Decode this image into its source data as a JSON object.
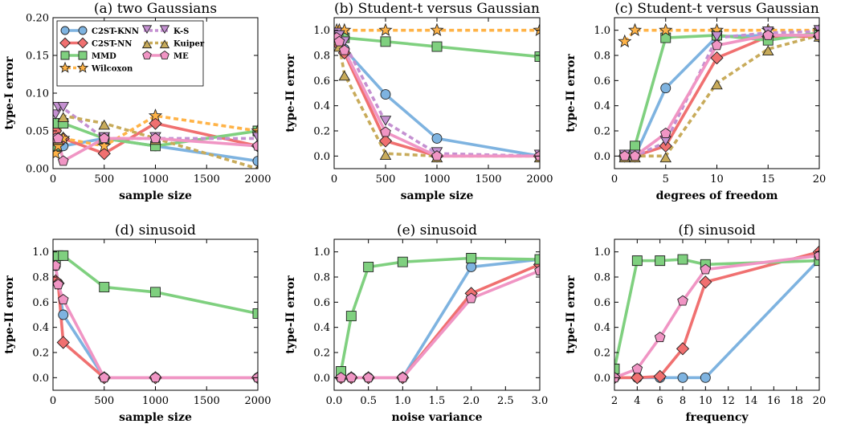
{
  "colors": {
    "c2st_knn": "#7eb3e0",
    "c2st_nn": "#f07070",
    "mmd": "#7fd07f",
    "wilcoxon": "#ffb347",
    "ks": "#c490d1",
    "kuiper": "#c8ab5a",
    "me": "#f095c4"
  },
  "chart_data": [
    {
      "type": "line",
      "title": "(a) two Gaussians",
      "xlabel": "sample size",
      "ylabel": "type-I error",
      "xlim": [
        0,
        2000
      ],
      "ylim": [
        0,
        0.2
      ],
      "xticks": [
        0,
        500,
        1000,
        1500,
        2000
      ],
      "yticks": [
        0.0,
        0.05,
        0.1,
        0.15,
        0.2
      ],
      "ytick_labels": [
        "0.00",
        "0.05",
        "0.10",
        "0.15",
        "0.20"
      ],
      "legend": {
        "position": "top-left",
        "entries": [
          "C2ST-KNN",
          "C2ST-NN",
          "MMD",
          "Wilcoxon",
          "K-S",
          "Kuiper",
          "ME"
        ]
      },
      "x": [
        25,
        50,
        100,
        500,
        1000,
        2000
      ],
      "series": [
        {
          "name": "C2ST-KNN",
          "values": [
            0.03,
            0.03,
            0.03,
            0.04,
            0.03,
            0.01
          ]
        },
        {
          "name": "C2ST-NN",
          "values": [
            0.05,
            0.04,
            0.04,
            0.02,
            0.06,
            0.03
          ]
        },
        {
          "name": "MMD",
          "values": [
            0.03,
            0.06,
            0.06,
            0.04,
            0.03,
            0.05
          ]
        },
        {
          "name": "Wilcoxon",
          "values": [
            0.02,
            0.03,
            0.04,
            0.03,
            0.07,
            0.05
          ]
        },
        {
          "name": "K-S",
          "values": [
            0.07,
            0.08,
            0.08,
            0.04,
            0.04,
            0.04
          ]
        },
        {
          "name": "Kuiper",
          "values": [
            0.04,
            0.04,
            0.07,
            0.06,
            0.04,
            0.0
          ]
        },
        {
          "name": "ME",
          "values": [
            0.04,
            0.04,
            0.01,
            0.04,
            0.04,
            0.03
          ]
        }
      ]
    },
    {
      "type": "line",
      "title": "(b) Student-t versus Gaussian",
      "xlabel": "sample size",
      "ylabel": "type-II error",
      "xlim": [
        0,
        2000
      ],
      "ylim": [
        -0.1,
        1.1
      ],
      "xticks": [
        0,
        500,
        1000,
        1500,
        2000
      ],
      "yticks": [
        0.0,
        0.2,
        0.4,
        0.6,
        0.8,
        1.0
      ],
      "ytick_labels": [
        "0.0",
        "0.2",
        "0.4",
        "0.6",
        "0.8",
        "1.0"
      ],
      "x": [
        25,
        50,
        100,
        500,
        1000,
        2000
      ],
      "series": [
        {
          "name": "C2ST-KNN",
          "values": [
            0.96,
            0.93,
            0.85,
            0.49,
            0.14,
            0.0
          ]
        },
        {
          "name": "C2ST-NN",
          "values": [
            0.92,
            0.88,
            0.82,
            0.12,
            0.0,
            0.0
          ]
        },
        {
          "name": "MMD",
          "values": [
            0.98,
            0.96,
            0.94,
            0.91,
            0.87,
            0.79
          ]
        },
        {
          "name": "Wilcoxon",
          "values": [
            1.0,
            1.0,
            1.0,
            1.0,
            1.0,
            1.0
          ]
        },
        {
          "name": "K-S",
          "values": [
            0.97,
            0.95,
            0.9,
            0.27,
            0.02,
            0.0
          ]
        },
        {
          "name": "Kuiper",
          "values": [
            0.93,
            0.88,
            0.65,
            0.02,
            0.0,
            0.0
          ]
        },
        {
          "name": "ME",
          "values": [
            0.94,
            0.91,
            0.84,
            0.19,
            0.0,
            0.0
          ]
        }
      ]
    },
    {
      "type": "line",
      "title": "(c) Student-t versus Gaussian",
      "xlabel": "degrees of freedom",
      "ylabel": "type-II error",
      "xlim": [
        0,
        20
      ],
      "ylim": [
        -0.1,
        1.1
      ],
      "xticks": [
        0,
        5,
        10,
        15,
        20
      ],
      "yticks": [
        0.0,
        0.2,
        0.4,
        0.6,
        0.8,
        1.0
      ],
      "ytick_labels": [
        "0.0",
        "0.2",
        "0.4",
        "0.6",
        "0.8",
        "1.0"
      ],
      "x": [
        1,
        2,
        5,
        10,
        15,
        20
      ],
      "series": [
        {
          "name": "C2ST-KNN",
          "values": [
            0.0,
            0.0,
            0.54,
            0.95,
            0.96,
            0.96
          ]
        },
        {
          "name": "C2ST-NN",
          "values": [
            0.0,
            0.0,
            0.08,
            0.78,
            0.95,
            0.95
          ]
        },
        {
          "name": "MMD",
          "values": [
            0.0,
            0.08,
            0.94,
            0.96,
            0.92,
            0.98
          ]
        },
        {
          "name": "Wilcoxon",
          "values": [
            0.91,
            1.0,
            1.0,
            1.0,
            1.0,
            1.0
          ]
        },
        {
          "name": "K-S",
          "values": [
            0.0,
            0.0,
            0.11,
            0.94,
            0.98,
            0.99
          ]
        },
        {
          "name": "Kuiper",
          "values": [
            0.0,
            0.0,
            0.0,
            0.58,
            0.85,
            0.96
          ]
        },
        {
          "name": "ME",
          "values": [
            0.0,
            0.0,
            0.18,
            0.88,
            0.96,
            0.96
          ]
        }
      ]
    },
    {
      "type": "line",
      "title": "(d) sinusoid",
      "xlabel": "sample size",
      "ylabel": "type-II error",
      "xlim": [
        0,
        2000
      ],
      "ylim": [
        -0.1,
        1.1
      ],
      "xticks": [
        0,
        500,
        1000,
        1500,
        2000
      ],
      "yticks": [
        0.0,
        0.2,
        0.4,
        0.6,
        0.8,
        1.0
      ],
      "ytick_labels": [
        "0.0",
        "0.2",
        "0.4",
        "0.6",
        "0.8",
        "1.0"
      ],
      "x": [
        25,
        50,
        100,
        500,
        1000,
        2000
      ],
      "series": [
        {
          "name": "C2ST-KNN",
          "values": [
            0.89,
            0.75,
            0.5,
            0.0,
            0.0,
            0.0
          ]
        },
        {
          "name": "C2ST-NN",
          "values": [
            0.77,
            0.75,
            0.28,
            0.0,
            0.0,
            0.0
          ]
        },
        {
          "name": "MMD",
          "values": [
            0.95,
            0.97,
            0.97,
            0.72,
            0.68,
            0.51
          ]
        },
        {
          "name": "ME",
          "values": [
            0.89,
            0.74,
            0.62,
            0.0,
            0.0,
            0.0
          ]
        }
      ]
    },
    {
      "type": "line",
      "title": "(e) sinusoid",
      "xlabel": "noise variance",
      "ylabel": "type-II error",
      "xlim": [
        0,
        3
      ],
      "ylim": [
        -0.1,
        1.1
      ],
      "xticks": [
        0.0,
        0.5,
        1.0,
        1.5,
        2.0,
        2.5,
        3.0
      ],
      "xtick_labels": [
        "0.0",
        "0.5",
        "1.0",
        "1.5",
        "2.0",
        "2.5",
        "3.0"
      ],
      "yticks": [
        0.0,
        0.2,
        0.4,
        0.6,
        0.8,
        1.0
      ],
      "ytick_labels": [
        "0.0",
        "0.2",
        "0.4",
        "0.6",
        "0.8",
        "1.0"
      ],
      "x": [
        0.1,
        0.25,
        0.5,
        1.0,
        2.0,
        3.0
      ],
      "series": [
        {
          "name": "C2ST-KNN",
          "values": [
            0.0,
            0.0,
            0.0,
            0.0,
            0.88,
            0.94
          ]
        },
        {
          "name": "C2ST-NN",
          "values": [
            0.0,
            0.0,
            0.0,
            0.0,
            0.67,
            0.9
          ]
        },
        {
          "name": "MMD",
          "values": [
            0.05,
            0.49,
            0.88,
            0.92,
            0.95,
            0.94
          ]
        },
        {
          "name": "ME",
          "values": [
            0.0,
            0.0,
            0.0,
            0.0,
            0.63,
            0.85
          ]
        }
      ]
    },
    {
      "type": "line",
      "title": "(f) sinusoid",
      "xlabel": "frequency",
      "ylabel": "type-II error",
      "xlim": [
        2,
        20
      ],
      "ylim": [
        -0.1,
        1.1
      ],
      "xticks": [
        2,
        4,
        6,
        8,
        10,
        12,
        14,
        16,
        18,
        20
      ],
      "yticks": [
        0.0,
        0.2,
        0.4,
        0.6,
        0.8,
        1.0
      ],
      "ytick_labels": [
        "0.0",
        "0.2",
        "0.4",
        "0.6",
        "0.8",
        "1.0"
      ],
      "x": [
        2,
        4,
        6,
        8,
        10,
        20
      ],
      "series": [
        {
          "name": "C2ST-KNN",
          "values": [
            0.0,
            0.0,
            0.0,
            0.0,
            0.0,
            0.94
          ]
        },
        {
          "name": "C2ST-NN",
          "values": [
            0.0,
            0.0,
            0.01,
            0.23,
            0.76,
            1.0
          ]
        },
        {
          "name": "MMD",
          "values": [
            0.07,
            0.93,
            0.93,
            0.94,
            0.9,
            0.93
          ]
        },
        {
          "name": "ME",
          "values": [
            0.0,
            0.07,
            0.32,
            0.61,
            0.86,
            0.97
          ]
        }
      ]
    }
  ]
}
